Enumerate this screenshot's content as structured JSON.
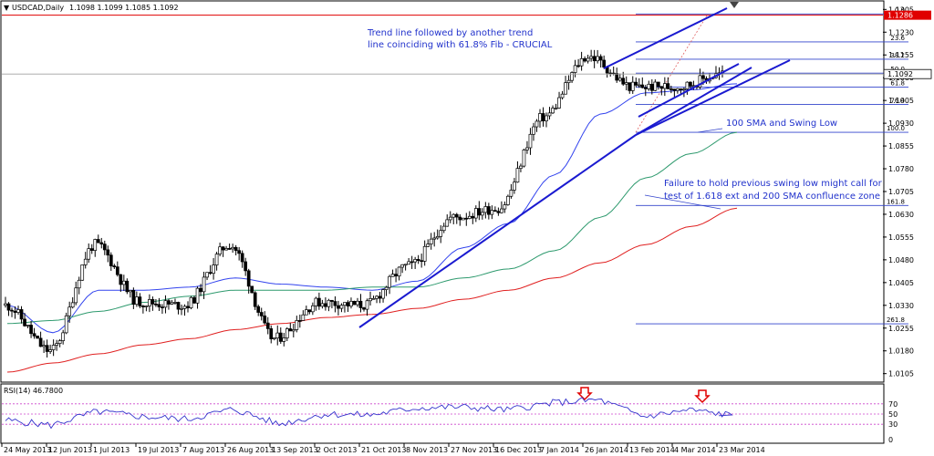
{
  "header": {
    "symbol_label": "USDCAD,Daily",
    "ohlc": "1.1098 1.1099 1.1085 1.1092",
    "menu_icon": "triangle-down-icon"
  },
  "rsi_panel": {
    "label": "RSI(14) 46.7800",
    "levels": [
      "70",
      "50",
      "30",
      "0"
    ],
    "level_values": [
      70,
      50,
      30
    ]
  },
  "price_axis": {
    "ticks": [
      "1.1305",
      "1.1230",
      "1.1155",
      "1.1080",
      "1.1005",
      "1.0930",
      "1.0855",
      "1.0780",
      "1.0705",
      "1.0630",
      "1.0555",
      "1.0480",
      "1.0405",
      "1.0330",
      "1.0255",
      "1.0180",
      "1.0105"
    ],
    "tick_values": [
      1.1305,
      1.123,
      1.1155,
      1.108,
      1.1005,
      1.093,
      1.0855,
      1.078,
      1.0705,
      1.063,
      1.0555,
      1.048,
      1.0405,
      1.033,
      1.0255,
      1.018,
      1.0105
    ],
    "current_price_label": "1.1092",
    "current_price": 1.1092,
    "high_line_label": "1.1286",
    "high_line_price": 1.1286
  },
  "date_axis": {
    "ticks": [
      "24 May 2013",
      "12 Jun 2013",
      "1 Jul 2013",
      "19 Jul 2013",
      "7 Aug 2013",
      "26 Aug 2013",
      "13 Sep 2013",
      "2 Oct 2013",
      "21 Oct 2013",
      "8 Nov 2013",
      "27 Nov 2013",
      "16 Dec 2013",
      "7 Jan 2014",
      "26 Jan 2014",
      "13 Feb 2014",
      "4 Mar 2014",
      "23 Mar 2014"
    ]
  },
  "fib_levels": [
    {
      "label": "0.0",
      "price": 1.129
    },
    {
      "label": "23.6",
      "price": 1.1198
    },
    {
      "label": "38.2",
      "price": 1.1141
    },
    {
      "label": "50.0",
      "price": 1.1095
    },
    {
      "label": "61.8",
      "price": 1.1049
    },
    {
      "label": "76.4",
      "price": 1.0992
    },
    {
      "label": "100.0",
      "price": 1.09
    },
    {
      "label": "161.8",
      "price": 1.0659
    },
    {
      "label": "261.8",
      "price": 1.0269
    }
  ],
  "annotations": {
    "trend_note_line1": "Trend line followed by another trend",
    "trend_note_line2": "line coinciding with 61.8% Fib - CRUCIAL",
    "sma_note": "100 SMA and Swing Low",
    "failure_note_line1": "Failure to hold previous swing low might call for",
    "failure_note_line2": "test of 1.618 ext and 200 SMA confluence zone"
  },
  "colors": {
    "candle": "#000000",
    "resistance_line": "#e00000",
    "trend_line": "#1a1ad0",
    "fib_line": "#3344cc",
    "sma_fast": "#3344ee",
    "sma_100": "#2e9a6e",
    "sma_200": "#e02020",
    "rsi_line": "#3333cc",
    "rsi_level": "#cc44cc",
    "arrow": "#e00000"
  },
  "chart_data": {
    "type": "line",
    "title": "USDCAD,Daily",
    "xlabel": "",
    "ylabel": "",
    "ylim": [
      1.008,
      1.133
    ],
    "x": [
      "24 May 2013",
      "12 Jun 2013",
      "1 Jul 2013",
      "19 Jul 2013",
      "7 Aug 2013",
      "26 Aug 2013",
      "13 Sep 2013",
      "2 Oct 2013",
      "21 Oct 2013",
      "8 Nov 2013",
      "27 Nov 2013",
      "16 Dec 2013",
      "7 Jan 2014",
      "26 Jan 2014",
      "13 Feb 2014",
      "4 Mar 2014",
      "23 Mar 2014"
    ],
    "series": [
      {
        "name": "",
        "values": [
          1.033,
          1.018,
          1.053,
          1.034,
          1.033,
          1.053,
          1.022,
          1.034,
          1.033,
          1.046,
          1.062,
          1.065,
          1.095,
          1.115,
          1.105,
          1.105,
          1.1092
        ]
      },
      {
        "name": "",
        "values": [
          1.033,
          1.024,
          1.038,
          1.038,
          1.039,
          1.042,
          1.04,
          1.039,
          1.038,
          1.041,
          1.052,
          1.06,
          1.076,
          1.096,
          1.103,
          1.104,
          1.106
        ]
      },
      {
        "name": "",
        "values": [
          1.027,
          1.028,
          1.031,
          1.034,
          1.036,
          1.038,
          1.038,
          1.038,
          1.039,
          1.039,
          1.042,
          1.045,
          1.051,
          1.062,
          1.075,
          1.083,
          1.09
        ]
      },
      {
        "name": "",
        "values": [
          1.011,
          1.014,
          1.017,
          1.02,
          1.022,
          1.025,
          1.027,
          1.029,
          1.03,
          1.032,
          1.035,
          1.038,
          1.042,
          1.047,
          1.053,
          1.059,
          1.065
        ]
      }
    ],
    "rsi_values": [
      38,
      28,
      55,
      45,
      40,
      60,
      30,
      50,
      48,
      62,
      64,
      58,
      72,
      78,
      45,
      58,
      46.78
    ],
    "grid": false
  }
}
